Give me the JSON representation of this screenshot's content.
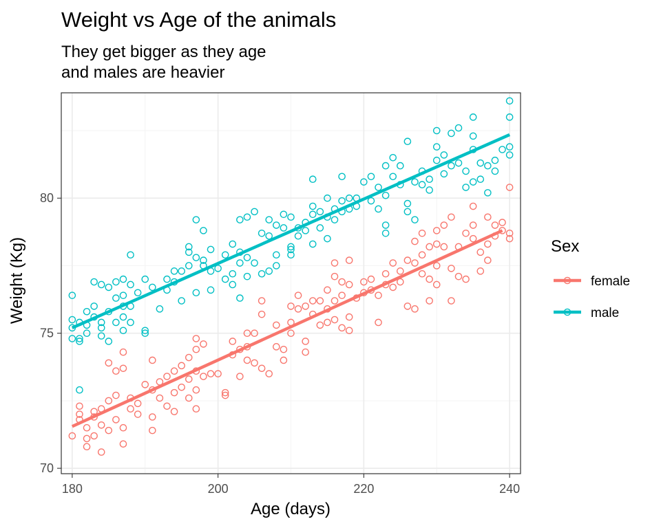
{
  "chart_data": {
    "type": "scatter",
    "title": "Weight vs Age of the animals",
    "subtitle_lines": [
      "They get bigger as they age",
      "and males are heavier"
    ],
    "xlabel": "Age (days)",
    "ylabel": "Weight (Kg)",
    "xlim": [
      178.5,
      241.5
    ],
    "ylim": [
      69.8,
      83.9
    ],
    "x_ticks": [
      180,
      200,
      220,
      240
    ],
    "y_ticks": [
      70,
      75,
      80
    ],
    "x_minor": [
      190,
      210,
      230
    ],
    "y_minor": [
      72.5,
      77.5,
      82.5
    ],
    "grid": true,
    "legend": {
      "title": "Sex",
      "position": "right"
    },
    "series": [
      {
        "name": "female",
        "color": "#F8766D",
        "trend": {
          "x": [
            180,
            239
          ],
          "y": [
            71.55,
            78.8
          ]
        },
        "points": [
          [
            180,
            71.2
          ],
          [
            181,
            71.8
          ],
          [
            181,
            72.3
          ],
          [
            181,
            72.0
          ],
          [
            182,
            70.8
          ],
          [
            182,
            71.1
          ],
          [
            182,
            71.5
          ],
          [
            183,
            72.1
          ],
          [
            183,
            71.9
          ],
          [
            183,
            71.2
          ],
          [
            184,
            70.6
          ],
          [
            184,
            72.2
          ],
          [
            184,
            71.6
          ],
          [
            185,
            73.9
          ],
          [
            185,
            72.5
          ],
          [
            185,
            71.4
          ],
          [
            186,
            73.6
          ],
          [
            186,
            72.7
          ],
          [
            186,
            71.8
          ],
          [
            187,
            74.3
          ],
          [
            187,
            73.7
          ],
          [
            187,
            70.9
          ],
          [
            187,
            71.5
          ],
          [
            188,
            72.6
          ],
          [
            188,
            72.2
          ],
          [
            189,
            72.4
          ],
          [
            189,
            72.0
          ],
          [
            190,
            73.1
          ],
          [
            191,
            74.0
          ],
          [
            191,
            72.9
          ],
          [
            191,
            71.9
          ],
          [
            191,
            71.4
          ],
          [
            192,
            73.2
          ],
          [
            192,
            72.6
          ],
          [
            193,
            73.4
          ],
          [
            193,
            72.3
          ],
          [
            194,
            73.6
          ],
          [
            194,
            72.8
          ],
          [
            194,
            72.1
          ],
          [
            195,
            73.8
          ],
          [
            195,
            73.0
          ],
          [
            196,
            74.1
          ],
          [
            196,
            73.3
          ],
          [
            196,
            72.6
          ],
          [
            197,
            74.8
          ],
          [
            197,
            74.4
          ],
          [
            197,
            73.6
          ],
          [
            197,
            72.9
          ],
          [
            197,
            72.2
          ],
          [
            198,
            74.6
          ],
          [
            198,
            73.4
          ],
          [
            199,
            73.5
          ],
          [
            200,
            73.5
          ],
          [
            201,
            72.8
          ],
          [
            201,
            72.7
          ],
          [
            202,
            74.7
          ],
          [
            202,
            74.2
          ],
          [
            203,
            74.4
          ],
          [
            203,
            73.4
          ],
          [
            204,
            75.0
          ],
          [
            204,
            74.5
          ],
          [
            204,
            74.0
          ],
          [
            205,
            75.0
          ],
          [
            205,
            73.9
          ],
          [
            206,
            76.2
          ],
          [
            206,
            75.7
          ],
          [
            206,
            73.7
          ],
          [
            207,
            73.5
          ],
          [
            208,
            75.3
          ],
          [
            208,
            74.5
          ],
          [
            209,
            74.4
          ],
          [
            209,
            74.0
          ],
          [
            210,
            75.4
          ],
          [
            210,
            75.0
          ],
          [
            210,
            76.0
          ],
          [
            211,
            76.4
          ],
          [
            211,
            75.9
          ],
          [
            212,
            76.0
          ],
          [
            212,
            74.7
          ],
          [
            212,
            74.3
          ],
          [
            213,
            76.2
          ],
          [
            213,
            75.7
          ],
          [
            214,
            76.2
          ],
          [
            214,
            75.3
          ],
          [
            215,
            76.6
          ],
          [
            215,
            75.9
          ],
          [
            215,
            75.4
          ],
          [
            216,
            77.6
          ],
          [
            216,
            77.1
          ],
          [
            216,
            76.2
          ],
          [
            216,
            75.5
          ],
          [
            217,
            76.9
          ],
          [
            217,
            76.4
          ],
          [
            217,
            75.2
          ],
          [
            218,
            77.7
          ],
          [
            218,
            76.8
          ],
          [
            218,
            75.6
          ],
          [
            218,
            75.1
          ],
          [
            219,
            76.3
          ],
          [
            220,
            76.9
          ],
          [
            220,
            76.5
          ],
          [
            221,
            77.0
          ],
          [
            221,
            76.6
          ],
          [
            222,
            76.4
          ],
          [
            222,
            75.4
          ],
          [
            223,
            77.2
          ],
          [
            223,
            76.8
          ],
          [
            224,
            77.6
          ],
          [
            224,
            76.7
          ],
          [
            225,
            77.3
          ],
          [
            225,
            76.9
          ],
          [
            226,
            77.7
          ],
          [
            226,
            76.0
          ],
          [
            227,
            78.4
          ],
          [
            227,
            77.6
          ],
          [
            227,
            75.9
          ],
          [
            228,
            78.7
          ],
          [
            228,
            77.9
          ],
          [
            228,
            77.2
          ],
          [
            229,
            78.2
          ],
          [
            229,
            77.0
          ],
          [
            229,
            76.2
          ],
          [
            230,
            78.8
          ],
          [
            230,
            78.3
          ],
          [
            230,
            77.5
          ],
          [
            230,
            76.8
          ],
          [
            231,
            79.0
          ],
          [
            231,
            78.2
          ],
          [
            232,
            79.3
          ],
          [
            232,
            77.4
          ],
          [
            232,
            76.2
          ],
          [
            233,
            78.2
          ],
          [
            233,
            77.1
          ],
          [
            234,
            78.7
          ],
          [
            234,
            77.0
          ],
          [
            235,
            79.7
          ],
          [
            235,
            79.0
          ],
          [
            235,
            78.5
          ],
          [
            236,
            78.0
          ],
          [
            236,
            77.3
          ],
          [
            237,
            79.3
          ],
          [
            237,
            78.3
          ],
          [
            237,
            77.7
          ],
          [
            238,
            78.6
          ],
          [
            238,
            79.0
          ],
          [
            239,
            79.1
          ],
          [
            239,
            78.8
          ],
          [
            240,
            80.4
          ],
          [
            240,
            78.7
          ],
          [
            240,
            78.5
          ]
        ]
      },
      {
        "name": "male",
        "color": "#00BFC4",
        "trend": {
          "x": [
            180,
            240
          ],
          "y": [
            75.2,
            82.35
          ]
        },
        "points": [
          [
            180,
            76.4
          ],
          [
            180,
            75.5
          ],
          [
            180,
            75.2
          ],
          [
            180,
            74.8
          ],
          [
            181,
            75.4
          ],
          [
            181,
            74.8
          ],
          [
            181,
            74.7
          ],
          [
            181,
            72.9
          ],
          [
            182,
            75.3
          ],
          [
            182,
            75.0
          ],
          [
            182,
            75.8
          ],
          [
            183,
            76.9
          ],
          [
            183,
            76.0
          ],
          [
            183,
            75.6
          ],
          [
            184,
            76.8
          ],
          [
            184,
            75.4
          ],
          [
            184,
            75.2
          ],
          [
            184,
            74.9
          ],
          [
            185,
            76.7
          ],
          [
            185,
            75.8
          ],
          [
            185,
            74.7
          ],
          [
            186,
            76.9
          ],
          [
            186,
            76.3
          ],
          [
            186,
            75.4
          ],
          [
            187,
            77.0
          ],
          [
            187,
            76.4
          ],
          [
            187,
            76.0
          ],
          [
            187,
            75.6
          ],
          [
            187,
            75.1
          ],
          [
            188,
            77.9
          ],
          [
            188,
            76.8
          ],
          [
            188,
            76.0
          ],
          [
            188,
            75.4
          ],
          [
            189,
            76.5
          ],
          [
            190,
            77.0
          ],
          [
            190,
            75.0
          ],
          [
            190,
            75.1
          ],
          [
            191,
            76.7
          ],
          [
            192,
            75.9
          ],
          [
            193,
            77.0
          ],
          [
            193,
            76.6
          ],
          [
            194,
            77.3
          ],
          [
            194,
            76.9
          ],
          [
            195,
            77.3
          ],
          [
            195,
            76.2
          ],
          [
            196,
            78.2
          ],
          [
            196,
            78.0
          ],
          [
            196,
            77.5
          ],
          [
            197,
            79.2
          ],
          [
            197,
            77.8
          ],
          [
            197,
            76.5
          ],
          [
            198,
            78.8
          ],
          [
            198,
            77.5
          ],
          [
            198,
            77.7
          ],
          [
            199,
            78.1
          ],
          [
            199,
            77.3
          ],
          [
            199,
            76.6
          ],
          [
            200,
            77.4
          ],
          [
            201,
            77.0
          ],
          [
            201,
            77.9
          ],
          [
            202,
            78.3
          ],
          [
            202,
            77.2
          ],
          [
            202,
            76.8
          ],
          [
            203,
            79.2
          ],
          [
            203,
            78.0
          ],
          [
            203,
            77.6
          ],
          [
            203,
            76.3
          ],
          [
            204,
            79.3
          ],
          [
            204,
            77.8
          ],
          [
            204,
            77.1
          ],
          [
            205,
            79.5
          ],
          [
            205,
            77.6
          ],
          [
            206,
            78.7
          ],
          [
            206,
            77.2
          ],
          [
            207,
            78.6
          ],
          [
            207,
            79.2
          ],
          [
            207,
            77.3
          ],
          [
            208,
            79.0
          ],
          [
            208,
            77.5
          ],
          [
            208,
            77.9
          ],
          [
            209,
            79.4
          ],
          [
            209,
            78.9
          ],
          [
            210,
            79.3
          ],
          [
            210,
            78.2
          ],
          [
            210,
            77.9
          ],
          [
            210,
            78.1
          ],
          [
            211,
            78.9
          ],
          [
            211,
            78.6
          ],
          [
            212,
            78.8
          ],
          [
            212,
            79.1
          ],
          [
            213,
            80.7
          ],
          [
            213,
            79.7
          ],
          [
            213,
            79.4
          ],
          [
            213,
            78.3
          ],
          [
            214,
            79.5
          ],
          [
            214,
            78.9
          ],
          [
            215,
            80.0
          ],
          [
            215,
            79.3
          ],
          [
            215,
            78.5
          ],
          [
            216,
            79.6
          ],
          [
            216,
            79.2
          ],
          [
            217,
            80.8
          ],
          [
            217,
            79.9
          ],
          [
            217,
            79.5
          ],
          [
            218,
            80.0
          ],
          [
            218,
            79.6
          ],
          [
            219,
            80.0
          ],
          [
            219,
            79.7
          ],
          [
            220,
            80.6
          ],
          [
            221,
            80.8
          ],
          [
            221,
            79.9
          ],
          [
            222,
            80.4
          ],
          [
            222,
            79.6
          ],
          [
            223,
            81.2
          ],
          [
            223,
            80.1
          ],
          [
            223,
            79.0
          ],
          [
            223,
            78.7
          ],
          [
            224,
            81.5
          ],
          [
            224,
            80.8
          ],
          [
            225,
            81.2
          ],
          [
            225,
            80.5
          ],
          [
            226,
            82.1
          ],
          [
            226,
            79.8
          ],
          [
            226,
            79.5
          ],
          [
            227,
            80.6
          ],
          [
            227,
            79.2
          ],
          [
            228,
            81.0
          ],
          [
            228,
            80.5
          ],
          [
            229,
            80.7
          ],
          [
            229,
            80.3
          ],
          [
            230,
            82.5
          ],
          [
            230,
            81.9
          ],
          [
            230,
            81.4
          ],
          [
            231,
            80.9
          ],
          [
            231,
            81.6
          ],
          [
            232,
            82.4
          ],
          [
            232,
            81.2
          ],
          [
            233,
            82.6
          ],
          [
            233,
            81.3
          ],
          [
            234,
            81.0
          ],
          [
            234,
            80.4
          ],
          [
            235,
            83.0
          ],
          [
            235,
            82.3
          ],
          [
            235,
            81.8
          ],
          [
            235,
            80.6
          ],
          [
            236,
            81.3
          ],
          [
            236,
            80.7
          ],
          [
            237,
            81.2
          ],
          [
            237,
            80.2
          ],
          [
            238,
            81.4
          ],
          [
            238,
            81.0
          ],
          [
            239,
            81.8
          ],
          [
            240,
            83.6
          ],
          [
            240,
            83.0
          ],
          [
            240,
            81.9
          ],
          [
            240,
            81.6
          ]
        ]
      }
    ]
  }
}
